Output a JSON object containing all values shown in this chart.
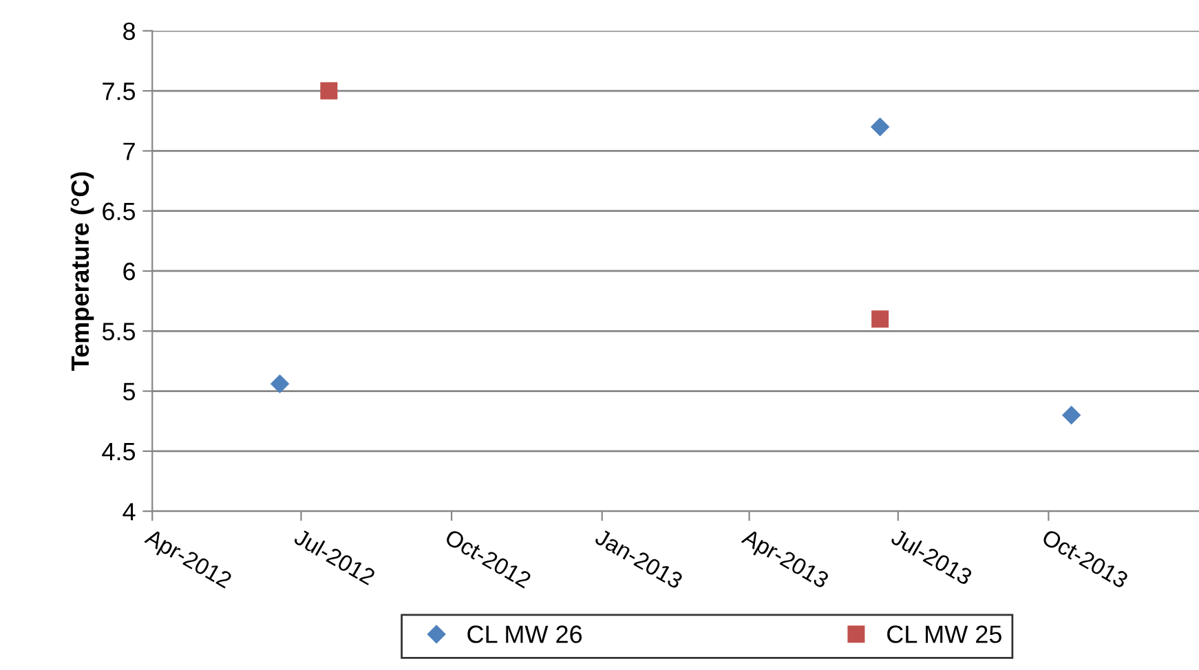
{
  "chart_data": {
    "type": "scatter",
    "ylabel": "Temperature (°C)",
    "xlim": [
      "2012-04-01",
      "2014-01-01"
    ],
    "xticks": [
      {
        "value": "2012-04-01",
        "label": "Apr-2012"
      },
      {
        "value": "2012-07-01",
        "label": "Jul-2012"
      },
      {
        "value": "2012-10-01",
        "label": "Oct-2012"
      },
      {
        "value": "2013-01-01",
        "label": "Jan-2013"
      },
      {
        "value": "2013-04-01",
        "label": "Apr-2013"
      },
      {
        "value": "2013-07-01",
        "label": "Jul-2013"
      },
      {
        "value": "2013-10-01",
        "label": "Oct-2013"
      }
    ],
    "ylim": [
      4,
      8
    ],
    "yticks": [
      4,
      4.5,
      5,
      5.5,
      6,
      6.5,
      7,
      7.5,
      8
    ],
    "grid": "y",
    "legend": "bottom",
    "series": [
      {
        "name": "CL MW 26",
        "color": "#4f81bd",
        "marker": "diamond",
        "x": [
          "2012-06-18",
          "2013-06-20",
          "2013-10-15"
        ],
        "values": [
          5.06,
          7.2,
          4.8
        ]
      },
      {
        "name": "CL MW 25",
        "color": "#c0504d",
        "marker": "square",
        "x": [
          "2012-07-18",
          "2013-06-20"
        ],
        "values": [
          7.5,
          5.6
        ]
      }
    ]
  }
}
